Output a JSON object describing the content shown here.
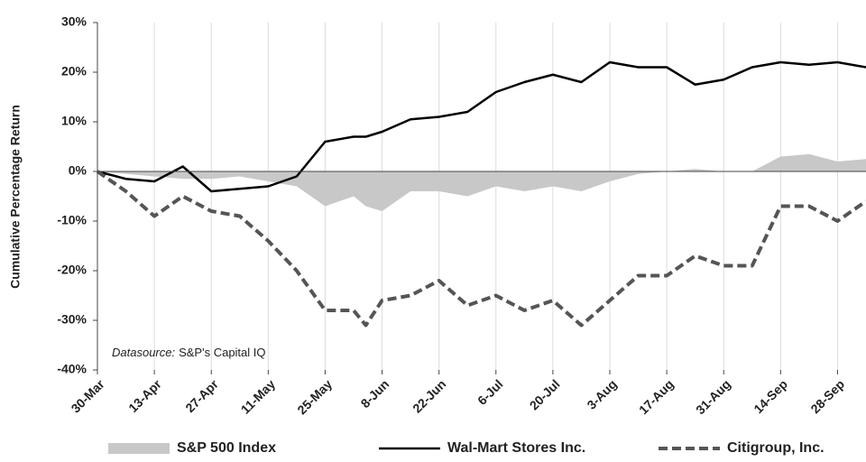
{
  "chart_data": {
    "type": "line",
    "y_label": "Cumulative Percentage Return",
    "annotation": {
      "label": "Datasource:",
      "text": "S&P's Capital IQ"
    },
    "x": [
      0,
      7,
      14,
      21,
      28,
      35,
      42,
      49,
      56,
      63,
      66,
      70,
      77,
      84,
      91,
      98,
      105,
      112,
      119,
      126,
      133,
      140,
      147,
      154,
      161,
      168,
      175,
      182,
      189
    ],
    "xlim": [
      0,
      189
    ],
    "xticks": [
      {
        "value": 0,
        "label": "30-Mar"
      },
      {
        "value": 14,
        "label": "13-Apr"
      },
      {
        "value": 28,
        "label": "27-Apr"
      },
      {
        "value": 42,
        "label": "11-May"
      },
      {
        "value": 56,
        "label": "25-May"
      },
      {
        "value": 70,
        "label": "8-Jun"
      },
      {
        "value": 84,
        "label": "22-Jun"
      },
      {
        "value": 98,
        "label": "6-Jul"
      },
      {
        "value": 112,
        "label": "20-Jul"
      },
      {
        "value": 126,
        "label": "3-Aug"
      },
      {
        "value": 140,
        "label": "17-Aug"
      },
      {
        "value": 154,
        "label": "31-Aug"
      },
      {
        "value": 168,
        "label": "14-Sep"
      },
      {
        "value": 182,
        "label": "28-Sep"
      }
    ],
    "ylim": [
      -40,
      30
    ],
    "yticks": [
      {
        "value": -40,
        "label": "-40%"
      },
      {
        "value": -30,
        "label": "-30%"
      },
      {
        "value": -20,
        "label": "-20%"
      },
      {
        "value": -10,
        "label": "-10%"
      },
      {
        "value": 0,
        "label": "0%"
      },
      {
        "value": 10,
        "label": "10%"
      },
      {
        "value": 20,
        "label": "20%"
      },
      {
        "value": 30,
        "label": "30%"
      }
    ],
    "grid": true,
    "legend": "bottom",
    "series": [
      {
        "name": "S&P 500 Index",
        "type": "area",
        "color": "#c8c8c8",
        "values": [
          0,
          -0.5,
          -1,
          -1.5,
          -1.5,
          -1,
          -2,
          -3,
          -7,
          -5,
          -7,
          -8,
          -4,
          -4,
          -5,
          -3,
          -4,
          -3,
          -4,
          -2,
          -0.5,
          0,
          0.5,
          0,
          0,
          3,
          3.5,
          2,
          2.5
        ]
      },
      {
        "name": "Wal-Mart Stores Inc.",
        "type": "line",
        "style": "solid",
        "color": "#000000",
        "values": [
          0,
          -1.5,
          -2,
          1,
          -4,
          -3.5,
          -3,
          -1,
          6,
          7,
          7,
          8,
          10.5,
          11,
          12,
          16,
          18,
          19.5,
          18,
          22,
          21,
          21,
          17.5,
          18.5,
          21,
          22,
          21.5,
          22,
          21
        ]
      },
      {
        "name": "Citigroup, Inc.",
        "type": "line",
        "style": "dashed",
        "color": "#555555",
        "values": [
          0,
          -4,
          -9,
          -5,
          -8,
          -9,
          -14,
          -20,
          -28,
          -28,
          -31,
          -26,
          -25,
          -22,
          -27,
          -25,
          -28,
          -26,
          -31,
          -26,
          -21,
          -21,
          -17,
          -19,
          -19,
          -7,
          -7,
          -10,
          -6
        ]
      }
    ]
  }
}
